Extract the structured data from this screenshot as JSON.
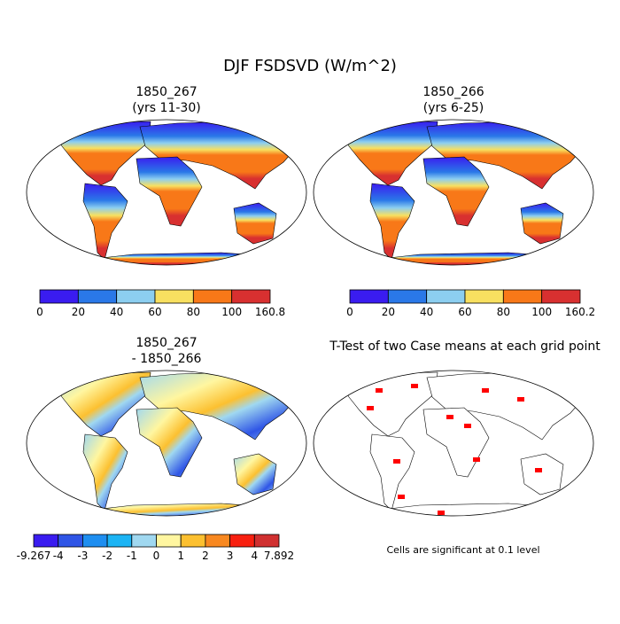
{
  "title": "DJF FSDSVD (W/m^2)",
  "panels": [
    {
      "title": "1850_267",
      "subtitle": "(yrs 11-30)",
      "colorbar": {
        "colors": [
          "#3a1cf0",
          "#2a78e8",
          "#8ccef0",
          "#f8e060",
          "#f87818",
          "#d83030"
        ],
        "labels": [
          0,
          20,
          40,
          60,
          80,
          100,
          160.8
        ]
      }
    },
    {
      "title": "1850_266",
      "subtitle": "(yrs 6-25)",
      "colorbar": {
        "colors": [
          "#3a1cf0",
          "#2a78e8",
          "#8ccef0",
          "#f8e060",
          "#f87818",
          "#d83030"
        ],
        "labels": [
          0,
          20,
          40,
          60,
          80,
          100,
          160.2
        ]
      }
    },
    {
      "title": "1850_267",
      "subtitle": "- 1850_266",
      "colorbar": {
        "colors": [
          "#3a1cf0",
          "#2f55e6",
          "#1e8ef0",
          "#1cb4f4",
          "#a0d8f0",
          "#fff6a0",
          "#fcc030",
          "#f88820",
          "#f82010",
          "#d03030"
        ],
        "labels": [
          -9.267,
          -4,
          -3,
          -2,
          -1,
          0,
          1,
          2,
          3,
          4,
          7.892
        ]
      }
    }
  ],
  "ttest": {
    "title": "T-Test of two Case means at each grid point",
    "note": "Cells are significant at 0.1 level"
  }
}
